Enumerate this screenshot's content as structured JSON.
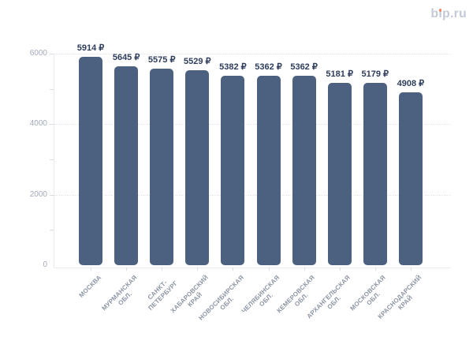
{
  "logo": {
    "text": "bip.ru",
    "color": "#c5cad7",
    "dot_color": "#f5875f"
  },
  "chart_data": {
    "type": "bar",
    "title": "",
    "xlabel": "",
    "ylabel": "",
    "categories": [
      "МОСКВА",
      "МУРМАНСКАЯ\nОБЛ.",
      "САНКТ-\nПЕТЕРБУРГ",
      "ХАБАРОВСКИЙ\nКРАЙ",
      "НОВОСИБИРСКАЯ\nОБЛ.",
      "ЧЕЛЯБИНСКАЯ\nОБЛ.",
      "КЕМЕРОВСКАЯ\nОБЛ.",
      "АРХАНГЕЛЬСКАЯ\nОБЛ.",
      "МОСКОВСКАЯ\nОБЛ.",
      "КРАСНОДАРСКИЙ\nКРАЙ"
    ],
    "values": [
      5914,
      5645,
      5575,
      5529,
      5382,
      5362,
      5362,
      5181,
      5179,
      4908
    ],
    "value_labels": [
      "5914 ₽",
      "5645 ₽",
      "5575 ₽",
      "5529 ₽",
      "5382 ₽",
      "5362 ₽",
      "5362 ₽",
      "5181 ₽",
      "5179 ₽",
      "4908 ₽"
    ],
    "unit": "₽",
    "ylim": [
      0,
      6000
    ],
    "yticks_labeled": [
      0,
      2000,
      4000,
      6000
    ],
    "yticks_minor": [
      1000,
      3000,
      5000
    ],
    "gridlines": [
      2000,
      4000,
      6000
    ],
    "grid_style": "dotted",
    "legend_position": "none",
    "bar_color": "#4c6180",
    "value_label_color": "#2e3d5c",
    "y_tick_label_color": "#a2aab9",
    "x_tick_label_color": "#8d95a4",
    "grid_color": "#e0e3e9",
    "axis_line_color": "#e8eaef",
    "tick_mark_color": "#d9dce2"
  }
}
